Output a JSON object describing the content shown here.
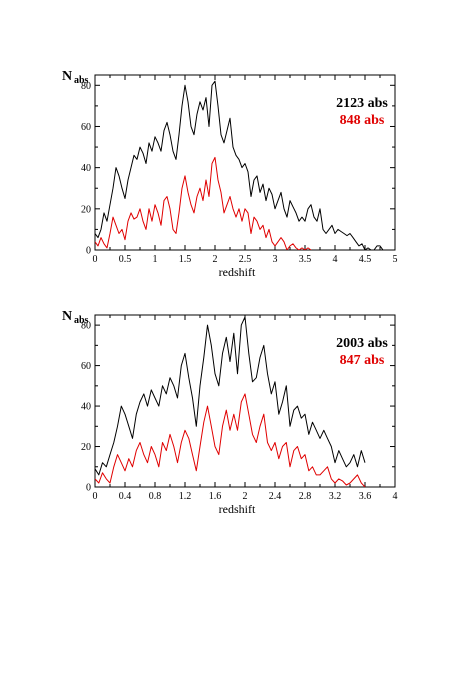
{
  "colors": {
    "all": "#000000",
    "sub": "#e00000",
    "axis": "#000000"
  },
  "chart_data": [
    {
      "type": "line",
      "ylabel_main": "N",
      "ylabel_sub": "abs",
      "xlabel": "redshift",
      "xlim": [
        0,
        5
      ],
      "ylim": [
        0,
        85
      ],
      "xticks": [
        "0",
        "0.5",
        "1",
        "1.5",
        "2",
        "2.5",
        "3",
        "3.5",
        "4",
        "4.5",
        "5"
      ],
      "yticks": [
        "0",
        "20",
        "40",
        "60",
        "80"
      ],
      "legend_placement": "top-right",
      "series": [
        {
          "name": "2123 abs",
          "color": "#000000",
          "x": [
            0,
            0.05,
            0.1,
            0.15,
            0.2,
            0.25,
            0.3,
            0.35,
            0.4,
            0.45,
            0.5,
            0.55,
            0.6,
            0.65,
            0.7,
            0.75,
            0.8,
            0.85,
            0.9,
            0.95,
            1.0,
            1.05,
            1.1,
            1.15,
            1.2,
            1.25,
            1.3,
            1.35,
            1.4,
            1.45,
            1.5,
            1.55,
            1.6,
            1.65,
            1.7,
            1.75,
            1.8,
            1.85,
            1.9,
            1.95,
            2.0,
            2.05,
            2.1,
            2.15,
            2.2,
            2.25,
            2.3,
            2.35,
            2.4,
            2.45,
            2.5,
            2.55,
            2.6,
            2.65,
            2.7,
            2.75,
            2.8,
            2.85,
            2.9,
            2.95,
            3.0,
            3.05,
            3.1,
            3.15,
            3.2,
            3.25,
            3.3,
            3.35,
            3.4,
            3.45,
            3.5,
            3.55,
            3.6,
            3.65,
            3.7,
            3.75,
            3.8,
            3.85,
            3.9,
            3.95,
            4.0,
            4.05,
            4.1,
            4.15,
            4.2,
            4.25,
            4.3,
            4.35,
            4.4,
            4.45,
            4.5,
            4.55,
            4.6,
            4.65,
            4.7,
            4.75,
            4.8
          ],
          "y": [
            8,
            6,
            10,
            18,
            14,
            22,
            30,
            40,
            36,
            30,
            25,
            34,
            40,
            46,
            44,
            50,
            47,
            42,
            52,
            48,
            55,
            52,
            48,
            58,
            62,
            56,
            48,
            44,
            56,
            70,
            80,
            72,
            60,
            56,
            66,
            72,
            68,
            74,
            60,
            80,
            82,
            70,
            56,
            52,
            58,
            64,
            50,
            46,
            44,
            40,
            42,
            38,
            26,
            34,
            36,
            28,
            32,
            24,
            30,
            27,
            20,
            24,
            28,
            20,
            16,
            24,
            21,
            18,
            14,
            16,
            14,
            20,
            22,
            16,
            14,
            20,
            10,
            8,
            10,
            12,
            8,
            10,
            9,
            8,
            7,
            8,
            6,
            4,
            2,
            3,
            0,
            1,
            0,
            0,
            2,
            2,
            0
          ]
        },
        {
          "name": "848 abs",
          "color": "#e00000",
          "x": [
            0,
            0.05,
            0.1,
            0.15,
            0.2,
            0.25,
            0.3,
            0.35,
            0.4,
            0.45,
            0.5,
            0.55,
            0.6,
            0.65,
            0.7,
            0.75,
            0.8,
            0.85,
            0.9,
            0.95,
            1.0,
            1.05,
            1.1,
            1.15,
            1.2,
            1.25,
            1.3,
            1.35,
            1.4,
            1.45,
            1.5,
            1.55,
            1.6,
            1.65,
            1.7,
            1.75,
            1.8,
            1.85,
            1.9,
            1.95,
            2.0,
            2.05,
            2.1,
            2.15,
            2.2,
            2.25,
            2.3,
            2.35,
            2.4,
            2.45,
            2.5,
            2.55,
            2.6,
            2.65,
            2.7,
            2.75,
            2.8,
            2.85,
            2.9,
            2.95,
            3.0,
            3.05,
            3.1,
            3.15,
            3.2,
            3.25,
            3.3,
            3.35,
            3.4,
            3.45,
            3.5,
            3.55,
            3.6
          ],
          "y": [
            4,
            2,
            6,
            3,
            1,
            8,
            16,
            12,
            8,
            10,
            5,
            14,
            18,
            15,
            16,
            20,
            14,
            10,
            20,
            14,
            22,
            18,
            12,
            24,
            26,
            20,
            10,
            8,
            18,
            30,
            36,
            28,
            22,
            18,
            26,
            30,
            24,
            34,
            26,
            42,
            45,
            34,
            28,
            18,
            22,
            26,
            20,
            16,
            20,
            14,
            20,
            18,
            8,
            16,
            14,
            10,
            12,
            6,
            10,
            4,
            2,
            4,
            6,
            4,
            0,
            2,
            3,
            1,
            0,
            1,
            0,
            1,
            0
          ]
        }
      ]
    },
    {
      "type": "line",
      "ylabel_main": "N",
      "ylabel_sub": "abs",
      "xlabel": "redshift",
      "xlim": [
        0,
        4
      ],
      "ylim": [
        0,
        85
      ],
      "xticks": [
        "0",
        "0.4",
        "0.8",
        "1.2",
        "1.6",
        "2",
        "2.4",
        "2.8",
        "3.2",
        "3.6",
        "4"
      ],
      "yticks": [
        "0",
        "20",
        "40",
        "60",
        "80"
      ],
      "legend_placement": "top-right",
      "series": [
        {
          "name": "2003 abs",
          "color": "#000000",
          "x": [
            0,
            0.05,
            0.1,
            0.15,
            0.2,
            0.25,
            0.3,
            0.35,
            0.4,
            0.45,
            0.5,
            0.55,
            0.6,
            0.65,
            0.7,
            0.75,
            0.8,
            0.85,
            0.9,
            0.95,
            1.0,
            1.05,
            1.1,
            1.15,
            1.2,
            1.25,
            1.3,
            1.35,
            1.4,
            1.45,
            1.5,
            1.55,
            1.6,
            1.65,
            1.7,
            1.75,
            1.8,
            1.85,
            1.9,
            1.95,
            2.0,
            2.05,
            2.1,
            2.15,
            2.2,
            2.25,
            2.3,
            2.35,
            2.4,
            2.45,
            2.5,
            2.55,
            2.6,
            2.65,
            2.7,
            2.75,
            2.8,
            2.85,
            2.9,
            2.95,
            3.0,
            3.05,
            3.1,
            3.15,
            3.2,
            3.25,
            3.3,
            3.35,
            3.4,
            3.45,
            3.5,
            3.55,
            3.6
          ],
          "y": [
            9,
            6,
            12,
            10,
            16,
            22,
            30,
            40,
            36,
            30,
            24,
            36,
            42,
            46,
            40,
            48,
            44,
            40,
            50,
            46,
            54,
            50,
            44,
            60,
            66,
            54,
            44,
            30,
            50,
            64,
            80,
            70,
            56,
            50,
            66,
            74,
            62,
            76,
            56,
            80,
            84,
            66,
            52,
            54,
            64,
            70,
            56,
            46,
            52,
            36,
            42,
            50,
            30,
            38,
            40,
            34,
            36,
            26,
            32,
            28,
            24,
            28,
            24,
            20,
            12,
            18,
            14,
            10,
            12,
            16,
            10,
            18,
            12
          ]
        },
        {
          "name": "847 abs",
          "color": "#e00000",
          "x": [
            0,
            0.05,
            0.1,
            0.15,
            0.2,
            0.25,
            0.3,
            0.35,
            0.4,
            0.45,
            0.5,
            0.55,
            0.6,
            0.65,
            0.7,
            0.75,
            0.8,
            0.85,
            0.9,
            0.95,
            1.0,
            1.05,
            1.1,
            1.15,
            1.2,
            1.25,
            1.3,
            1.35,
            1.4,
            1.45,
            1.5,
            1.55,
            1.6,
            1.65,
            1.7,
            1.75,
            1.8,
            1.85,
            1.9,
            1.95,
            2.0,
            2.05,
            2.1,
            2.15,
            2.2,
            2.25,
            2.3,
            2.35,
            2.4,
            2.45,
            2.5,
            2.55,
            2.6,
            2.65,
            2.7,
            2.75,
            2.8,
            2.85,
            2.9,
            2.95,
            3.0,
            3.05,
            3.1,
            3.15,
            3.2,
            3.25,
            3.3,
            3.35,
            3.4,
            3.45,
            3.5,
            3.55,
            3.6
          ],
          "y": [
            4,
            2,
            7,
            4,
            2,
            10,
            16,
            12,
            8,
            14,
            10,
            18,
            22,
            16,
            12,
            20,
            16,
            10,
            22,
            18,
            26,
            20,
            12,
            22,
            28,
            24,
            16,
            8,
            20,
            32,
            40,
            30,
            20,
            16,
            30,
            38,
            28,
            36,
            28,
            42,
            46,
            36,
            26,
            22,
            30,
            36,
            22,
            18,
            22,
            14,
            20,
            22,
            10,
            18,
            20,
            14,
            16,
            8,
            10,
            6,
            6,
            8,
            10,
            4,
            2,
            4,
            3,
            1,
            2,
            4,
            6,
            2,
            0
          ]
        }
      ]
    }
  ]
}
